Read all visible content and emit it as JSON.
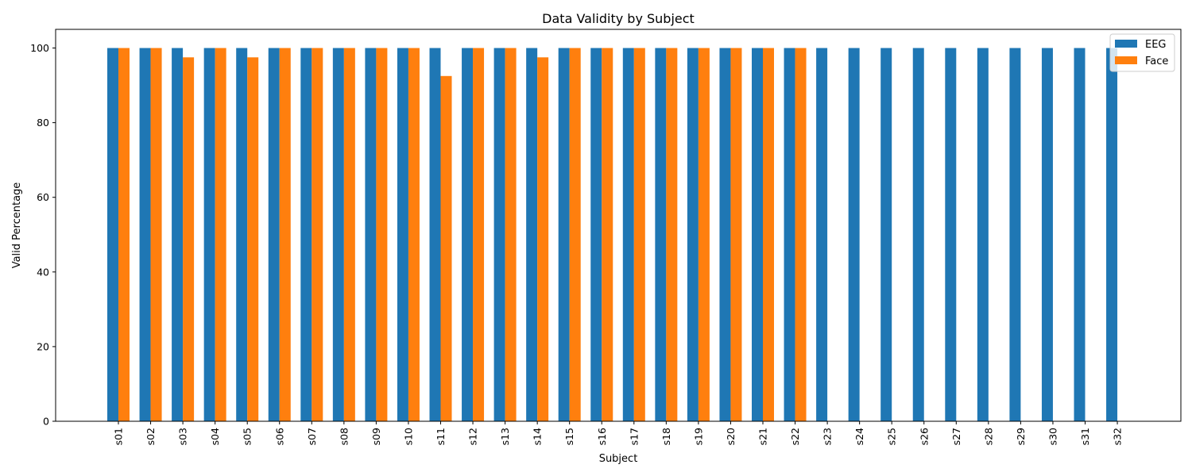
{
  "chart_data": {
    "type": "bar",
    "title": "Data Validity by Subject",
    "xlabel": "Subject",
    "ylabel": "Valid Percentage",
    "ylim": [
      0,
      105
    ],
    "yticks": [
      0,
      20,
      40,
      60,
      80,
      100
    ],
    "grid": false,
    "legend_position": "top-right",
    "categories": [
      "s01",
      "s02",
      "s03",
      "s04",
      "s05",
      "s06",
      "s07",
      "s08",
      "s09",
      "s10",
      "s11",
      "s12",
      "s13",
      "s14",
      "s15",
      "s16",
      "s17",
      "s18",
      "s19",
      "s20",
      "s21",
      "s22",
      "s23",
      "s24",
      "s25",
      "s26",
      "s27",
      "s28",
      "s29",
      "s30",
      "s31",
      "s32"
    ],
    "series": [
      {
        "name": "EEG",
        "color": "#1f77b4",
        "values": [
          100,
          100,
          100,
          100,
          100,
          100,
          100,
          100,
          100,
          100,
          100,
          100,
          100,
          100,
          100,
          100,
          100,
          100,
          100,
          100,
          100,
          100,
          100,
          100,
          100,
          100,
          100,
          100,
          100,
          100,
          100,
          100
        ]
      },
      {
        "name": "Face",
        "color": "#ff7f0e",
        "values": [
          100,
          100,
          97.5,
          100,
          97.5,
          100,
          100,
          100,
          100,
          100,
          92.5,
          100,
          100,
          97.5,
          100,
          100,
          100,
          100,
          100,
          100,
          100,
          100,
          null,
          null,
          null,
          null,
          null,
          null,
          null,
          null,
          null,
          null
        ]
      }
    ]
  }
}
